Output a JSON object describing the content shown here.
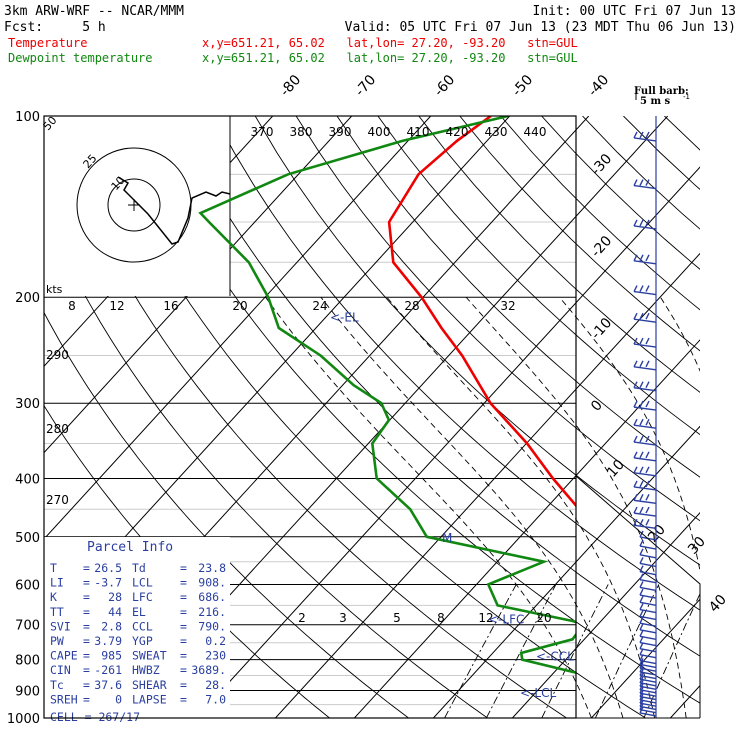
{
  "header": {
    "model": "3km ARW-WRF -- NCAR/MMM",
    "init": "Init: 00 UTC Fri 07 Jun 13",
    "fcst": "Fcst:     5 h",
    "valid": "Valid: 05 UTC Fri 07 Jun 13 (23 MDT Thu 06 Jun 13)",
    "temp_title": "Temperature",
    "dew_title": "Dewpoint temperature",
    "location": "x,y=651.21, 65.02   lat,lon= 27.20, -93.20   stn=GUL"
  },
  "barb_label": {
    "line1": "Full barb:",
    "line2": "5 m s"
  },
  "colors": {
    "temperature": "#ee0000",
    "dewpoint": "#118811",
    "frame": "#000000",
    "isotherm": "#000000",
    "text": "#2a3fa0"
  },
  "chart_data": {
    "type": "line",
    "pressure_ticks": [
      "100",
      "200",
      "300",
      "400",
      "500",
      "600",
      "700",
      "800",
      "900",
      "1000"
    ],
    "pressure_levels": [
      100,
      200,
      300,
      400,
      500,
      600,
      700,
      800,
      900,
      1000
    ],
    "temperature_tick_labels": [
      "-80",
      "-70",
      "-60",
      "-50",
      "-40",
      "-30",
      "-20",
      "-10",
      "0",
      "10",
      "20",
      "30",
      "40"
    ],
    "theta_labels": [
      "370",
      "380",
      "390",
      "400",
      "410",
      "420",
      "430",
      "440"
    ],
    "theta_labels_left": [
      "290",
      "280",
      "270"
    ],
    "mixing_ratio_labels": [
      "2",
      "3",
      "5",
      "8",
      "12"
    ],
    "mixing_ratio_label_20": "20",
    "hodo_speed_labels": [
      "8",
      "12",
      "16",
      "20",
      "24",
      "28",
      "32"
    ],
    "hodo_units": "kts",
    "hodo_ring_labels": [
      "50",
      "25",
      "10"
    ],
    "levels_annotations": [
      {
        "label": "<-EL",
        "p": 216
      },
      {
        "label": "<-LFC",
        "p": 686
      },
      {
        "label": "<-CCL",
        "p": 790
      },
      {
        "label": "<-LCL",
        "p": 908
      }
    ],
    "series": [
      {
        "name": "Temperature",
        "points": [
          [
            100,
            -72.4
          ],
          [
            110,
            -73.8
          ],
          [
            125,
            -74.8
          ],
          [
            150,
            -73
          ],
          [
            175,
            -67.8
          ],
          [
            200,
            -60.2
          ],
          [
            225,
            -54.1
          ],
          [
            250,
            -48.3
          ],
          [
            300,
            -39.2
          ],
          [
            350,
            -29.9
          ],
          [
            400,
            -22.6
          ],
          [
            450,
            -15.7
          ],
          [
            500,
            -9.8
          ],
          [
            550,
            -5
          ],
          [
            600,
            -2.2
          ],
          [
            650,
            1.5
          ],
          [
            700,
            4.9
          ],
          [
            750,
            8.8
          ],
          [
            800,
            13.5
          ],
          [
            850,
            16.9
          ],
          [
            900,
            19.3
          ],
          [
            950,
            22.5
          ],
          [
            1000,
            26.5
          ]
        ]
      },
      {
        "name": "Dewpoint temperature",
        "points": [
          [
            100,
            -70.2
          ],
          [
            110,
            -80.7
          ],
          [
            125,
            -91.3
          ],
          [
            145,
            -97.9
          ],
          [
            150,
            -95.8
          ],
          [
            175,
            -86.1
          ],
          [
            200,
            -79.6
          ],
          [
            225,
            -74.7
          ],
          [
            250,
            -66.2
          ],
          [
            280,
            -58.6
          ],
          [
            300,
            -53
          ],
          [
            320,
            -50.1
          ],
          [
            350,
            -49.5
          ],
          [
            400,
            -44.9
          ],
          [
            450,
            -37.1
          ],
          [
            500,
            -31.8
          ],
          [
            550,
            -14.1
          ],
          [
            600,
            -18.5
          ],
          [
            650,
            -14.9
          ],
          [
            690,
            -3.6
          ],
          [
            700,
            -1.8
          ],
          [
            740,
            -1.5
          ],
          [
            780,
            -6.4
          ],
          [
            800,
            -5.5
          ],
          [
            850,
            4.6
          ],
          [
            900,
            13.8
          ],
          [
            930,
            17
          ],
          [
            950,
            17.6
          ],
          [
            1000,
            23.8
          ]
        ]
      }
    ]
  },
  "parcel_info": {
    "title": "Parcel Info",
    "rows": [
      {
        "k1": "T",
        "v1": "26.5",
        "k2": "Td",
        "v2": "23.8"
      },
      {
        "k1": "LI",
        "v1": "-3.7",
        "k2": "LCL",
        "v2": "908."
      },
      {
        "k1": "K",
        "v1": "28",
        "k2": "LFC",
        "v2": "686."
      },
      {
        "k1": "TT",
        "v1": "44",
        "k2": "EL",
        "v2": "216."
      },
      {
        "k1": "SVI",
        "v1": "2.8",
        "k2": "CCL",
        "v2": "790."
      },
      {
        "k1": "PW",
        "v1": "3.79",
        "k2": "YGP",
        "v2": "0.2"
      },
      {
        "k1": "CAPE",
        "v1": "985",
        "k2": "SWEAT",
        "v2": "230"
      },
      {
        "k1": "CIN",
        "v1": "-261",
        "k2": "HWBZ",
        "v2": "3689."
      },
      {
        "k1": "Tc",
        "v1": "37.6",
        "k2": "SHEAR",
        "v2": "28."
      },
      {
        "k1": "SREH",
        "v1": "0",
        "k2": "LAPSE",
        "v2": "7.0"
      }
    ],
    "cell": "CELL = 267/17"
  },
  "hodograph_marker": "M"
}
